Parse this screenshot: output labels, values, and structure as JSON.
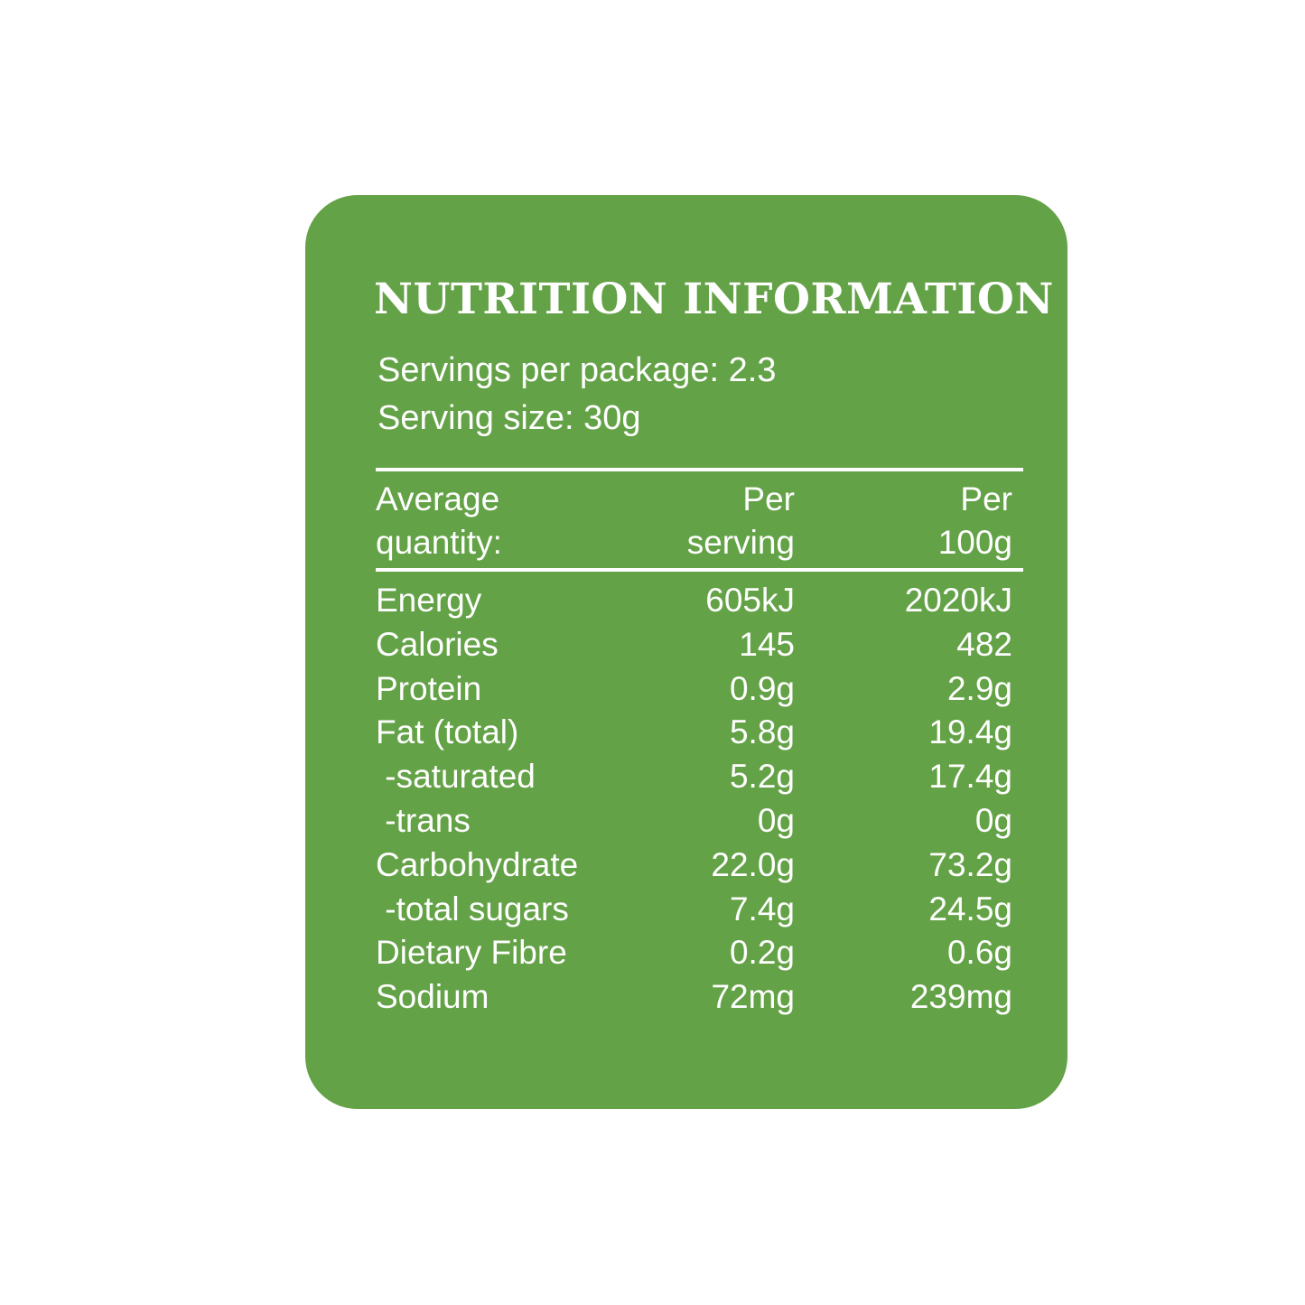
{
  "colors": {
    "panel": "#64a247",
    "text": "#ffffff",
    "background": "#ffffff"
  },
  "label": {
    "title": "NUTRITION INFORMATION",
    "servings_per_package": "Servings per package: 2.3",
    "serving_size": "Serving size: 30g"
  },
  "table": {
    "headers": {
      "quantity": [
        "Average",
        "quantity:"
      ],
      "per_serving": [
        "Per",
        "serving"
      ],
      "per_100g": [
        "Per",
        "100g"
      ]
    },
    "rows": [
      {
        "name": "Energy",
        "per_serving": "605kJ",
        "per_100g": "2020kJ"
      },
      {
        "name": "Calories",
        "per_serving": "145",
        "per_100g": "482"
      },
      {
        "name": "Protein",
        "per_serving": "0.9g",
        "per_100g": "2.9g"
      },
      {
        "name": "Fat (total)",
        "per_serving": "5.8g",
        "per_100g": "19.4g"
      },
      {
        "name": " -saturated",
        "per_serving": "5.2g",
        "per_100g": "17.4g"
      },
      {
        "name": " -trans",
        "per_serving": "0g",
        "per_100g": "0g"
      },
      {
        "name": "Carbohydrate",
        "per_serving": "22.0g",
        "per_100g": "73.2g"
      },
      {
        "name": " -total sugars",
        "per_serving": "7.4g",
        "per_100g": "24.5g"
      },
      {
        "name": "Dietary Fibre",
        "per_serving": "0.2g",
        "per_100g": "0.6g"
      },
      {
        "name": "Sodium",
        "per_serving": "72mg",
        "per_100g": "239mg"
      }
    ]
  }
}
